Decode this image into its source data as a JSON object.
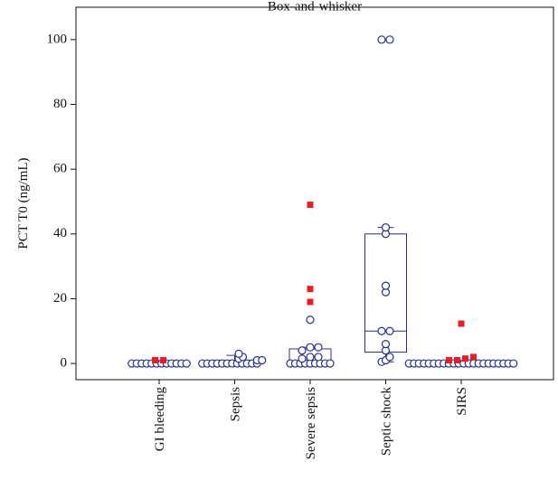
{
  "chart_data": {
    "type": "box",
    "title": "Box-and-whisker",
    "y_label": "PCT T0 (ng/mL)",
    "categories": [
      "GI bleeding",
      "Sepsis",
      "Severe sepsis",
      "Septic shock",
      "SIRS"
    ],
    "boxes": [
      {
        "whisker_low": 0,
        "q1": 0,
        "median": 0,
        "q3": 0,
        "whisker_high": 0
      },
      {
        "whisker_low": 0,
        "q1": 0,
        "median": 0,
        "q3": 1,
        "whisker_high": 2.5
      },
      {
        "whisker_low": 0,
        "q1": 0,
        "median": 0.5,
        "q3": 4.5,
        "whisker_high": 5
      },
      {
        "whisker_low": 0.5,
        "q1": 3.5,
        "median": 10,
        "q3": 40,
        "whisker_high": 42
      },
      {
        "whisker_low": 0,
        "q1": 0,
        "median": 0,
        "q3": 0,
        "whisker_high": 0
      }
    ],
    "points": [
      [
        0,
        0,
        0,
        0,
        0,
        0,
        0,
        0,
        0,
        0,
        0,
        0
      ],
      [
        0,
        0,
        0,
        0,
        0,
        0,
        0,
        0,
        0,
        0,
        0,
        0,
        1,
        1,
        1.5,
        2,
        3
      ],
      [
        0,
        0,
        0,
        0,
        0,
        0,
        0,
        0,
        0,
        1.5,
        2,
        2,
        4,
        5,
        5,
        13.5
      ],
      [
        0.5,
        1,
        2,
        4,
        6,
        10,
        10,
        22,
        24,
        40,
        42,
        100,
        100
      ],
      [
        0,
        0,
        0,
        0,
        0,
        0,
        0,
        0,
        0,
        0,
        0,
        0,
        0,
        0,
        0,
        0,
        0,
        0,
        0,
        0,
        0,
        0
      ]
    ],
    "outliers": [
      [
        1,
        1
      ],
      [],
      [
        19,
        23,
        49
      ],
      [],
      [
        1,
        1,
        1.5,
        2,
        12.3
      ]
    ],
    "color": "#27318b",
    "outlier_color": "#e41f26",
    "ylim": [
      -5,
      110
    ],
    "yticks": [
      0,
      20,
      40,
      60,
      80,
      100
    ]
  }
}
